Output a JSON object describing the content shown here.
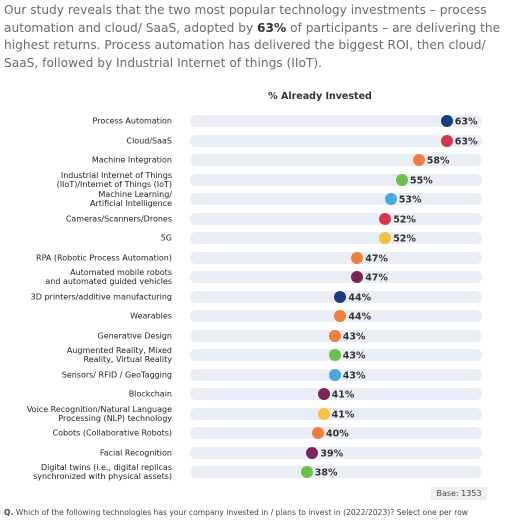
{
  "intro": {
    "before": "Our study reveals that the two most popular technology investments – process automation and cloud/ SaaS, adopted by ",
    "bold": "63%",
    "after": " of participants – are delivering the highest returns. Process automation has delivered the biggest ROI, then cloud/ SaaS, followed by Industrial Internet of things (IIoT)."
  },
  "chart_data": {
    "type": "dot",
    "title": "% Already Invested",
    "categories": [
      "Process Automation",
      "Cloud/SaaS",
      "Machine Integration",
      "Industrial Internet of Things\n(IIoT)/Internet of Things (IoT)",
      "Machine Learning/\nArtificial Intelligence",
      "Cameras/Scanners/Drones",
      "5G",
      "RPA (Robotic Process Automation)",
      "Automated mobile robots\nand automated guided vehicles",
      "3D printers/additive manufacturing",
      "Wearables",
      "Generative Design",
      "Augmented Reality, Mixed\nReality, Virtual Reality",
      "Sensors/ RFID / GeoTagging",
      "Blockchain",
      "Voice Recognition/Natural Language\nProcessing (NLP) technology",
      "Cobots (Collaborative Robots)",
      "Facial Recognition",
      "Digital twins (i.e., digital replicas\nsynchronized with physical assets)"
    ],
    "values": [
      63,
      63,
      58,
      55,
      53,
      52,
      52,
      47,
      47,
      44,
      44,
      43,
      43,
      43,
      41,
      41,
      40,
      39,
      38
    ],
    "value_labels": [
      "63%",
      "63%",
      "58%",
      "55%",
      "53%",
      "52%",
      "52%",
      "47%",
      "47%",
      "44%",
      "44%",
      "43%",
      "43%",
      "43%",
      "41%",
      "41%",
      "40%",
      "39%",
      "38%"
    ],
    "colors": [
      "#1d3b7c",
      "#d7354b",
      "#f07f3c",
      "#6cbf4b",
      "#4aa8e0",
      "#d7354b",
      "#f6c142",
      "#f07f3c",
      "#7a2459",
      "#1d3b7c",
      "#f07f3c",
      "#f07f3c",
      "#6cbf4b",
      "#4aa8e0",
      "#7a2459",
      "#f6c142",
      "#f07f3c",
      "#7a2459",
      "#6cbf4b"
    ],
    "xlim": [
      0,
      70
    ],
    "base": "Base: 1353"
  },
  "footnote": {
    "bold": "Q.",
    "text": " Which of the following technologies has your company invested in / plans to invest in (2022/2023)? Select one per row"
  }
}
